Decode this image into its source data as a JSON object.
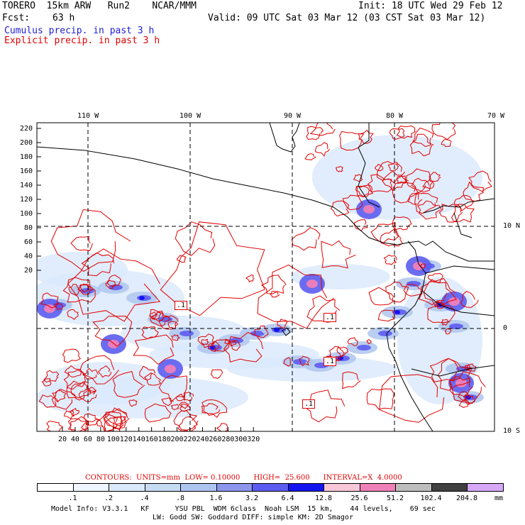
{
  "header": {
    "model": "TORERO  15km ARW   Run2    NCAR/MMM",
    "init": "Init: 18 UTC Wed 29 Feb 12",
    "fcst_label": "Fcst:",
    "fcst_value": "63 h",
    "valid": "Valid: 09 UTC Sat 03 Mar 12 (03 CST Sat 03 Mar 12)",
    "cumulus": "Cumulus precip. in past 3 h",
    "explicit": "Explicit precip. in past 3 h"
  },
  "colors": {
    "cumulus_text": "#2020d0",
    "explicit_text": "#e00000",
    "contour": "#e00000"
  },
  "map": {
    "top_lon_labels": [
      "110 W",
      "100 W",
      "90 W",
      "80 W",
      "70 W"
    ],
    "right_lat_labels": [
      "10 N",
      "0",
      "10 S"
    ],
    "y_ticks": [
      "220",
      "200",
      "180",
      "160",
      "140",
      "120",
      "100",
      "80",
      "60",
      "40",
      "20"
    ],
    "x_ticks": [
      "20",
      "40",
      "60",
      "80",
      "100",
      "120",
      "140",
      "160",
      "180",
      "200",
      "220",
      "240",
      "260",
      "280",
      "300",
      "320"
    ],
    "contour_labels": [
      ".1",
      ".1",
      ".1",
      ".1"
    ]
  },
  "footer": {
    "contours_line": "CONTOURS:  UNITS=mm  LOW= 0.10000      HIGH=  25.600      INTERVAL=X  4.0000",
    "scale_labels": [
      ".1",
      ".2",
      ".4",
      ".8",
      "1.6",
      "3.2",
      "6.4",
      "12.8",
      "25.6",
      "51.2",
      "102.4",
      "204.8"
    ],
    "scale_unit": "mm",
    "scale_colors": [
      "#ffffff",
      "#f0f6ff",
      "#dae9fb",
      "#c5dcf3",
      "#aec6ef",
      "#8d96ec",
      "#5c5cf0",
      "#1414f0",
      "#f8c8d8",
      "#f080b8",
      "#bebebe",
      "#404040",
      "#d8a8f8"
    ],
    "model_info": "Model Info: V3.3.1   KF      YSU PBL  WDM 6class  Noah LSM  15 km,    44 levels,    69 sec",
    "model_info2": "LW: Godd SW: Goddard DIFF: simple KM: 2D Smagor"
  }
}
